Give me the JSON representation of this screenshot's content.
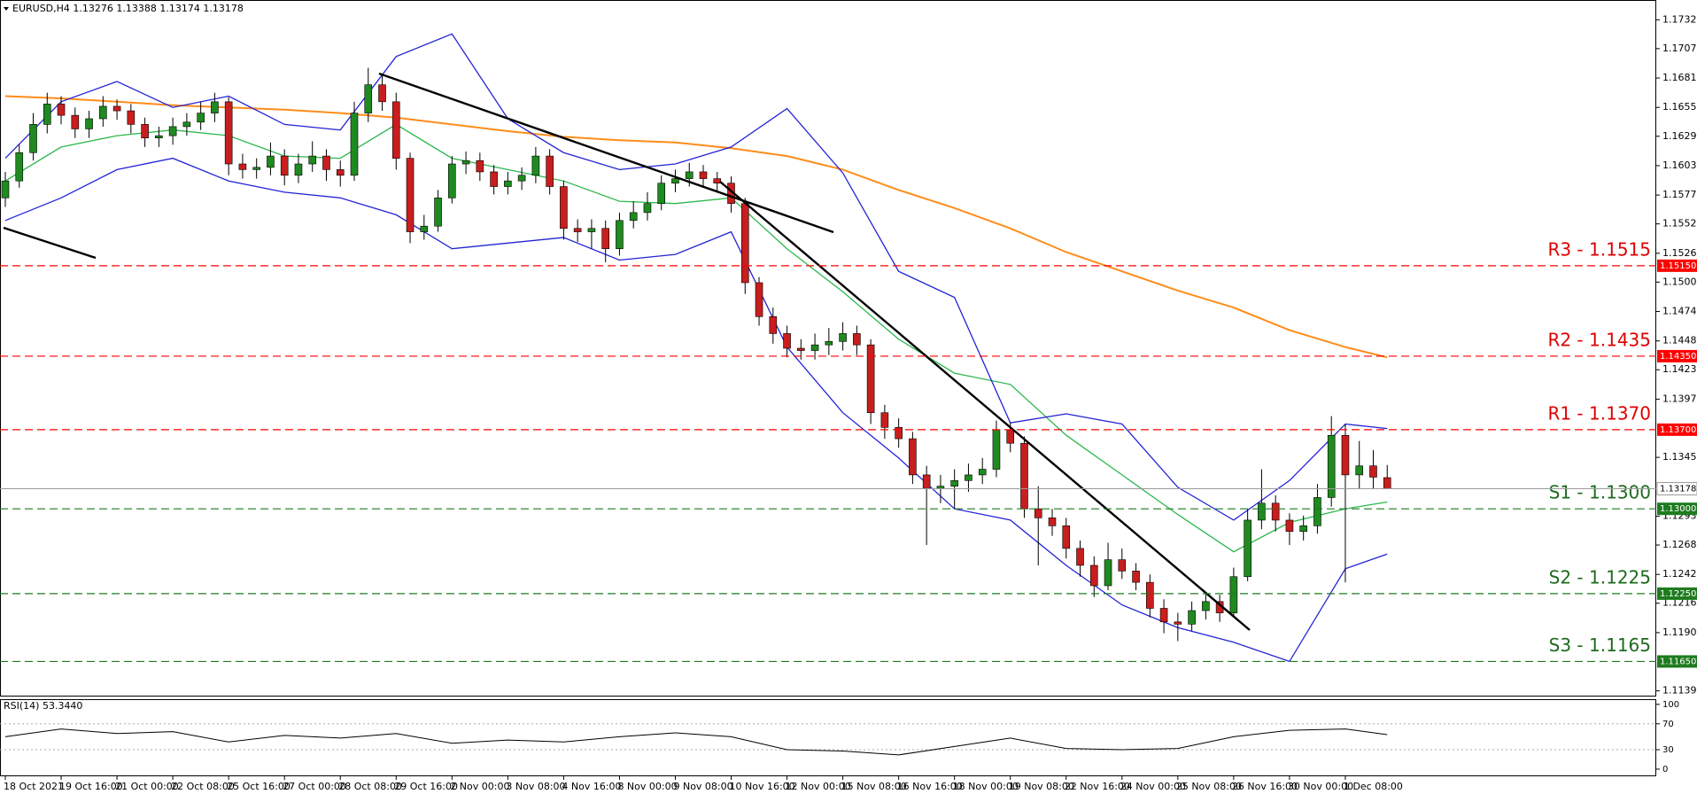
{
  "chart_data": {
    "type": "candlestick",
    "title": "EURUSD,H4  1.13276 1.13388 1.13174 1.13178",
    "up_color": "#1f8a1f",
    "down_color": "#c81e1e",
    "wick_color": "#000000",
    "grid": false,
    "ylim": [
      1.1134,
      1.175
    ],
    "yticks": [
      1.17325,
      {
        "value": 1.1707,
        "label": "1.17070"
      },
      {
        "value": 1.1681,
        "label": "1.16810"
      },
      {
        "value": 1.1655,
        "label": "1.16550"
      },
      1.16295,
      1.16035,
      1.15775,
      {
        "value": 1.1552,
        "label": "1.15520"
      },
      {
        "value": 1.1526,
        "label": "1.15260"
      },
      1.15005,
      1.14745,
      1.14485,
      {
        "value": 1.1423,
        "label": "1.14230"
      },
      {
        "value": 1.1397,
        "label": "1.13970"
      },
      1.13455,
      1.12935,
      {
        "value": 1.1268,
        "label": "1.12680"
      },
      {
        "value": 1.1242,
        "label": "1.12420"
      },
      1.12165,
      1.11905,
      {
        "value": 1.1139,
        "label": "1.11390"
      }
    ],
    "categories": [
      "18 Oct 2021",
      null,
      null,
      null,
      "19 Oct 16:00",
      null,
      null,
      null,
      "21 Oct 00:00",
      null,
      null,
      null,
      "22 Oct 08:00",
      null,
      null,
      null,
      "25 Oct 16:00",
      null,
      null,
      null,
      "27 Oct 00:00",
      null,
      null,
      null,
      "28 Oct 08:00",
      null,
      null,
      null,
      "29 Oct 16:00",
      null,
      null,
      null,
      "2 Nov 00:00",
      null,
      null,
      null,
      "3 Nov 08:00",
      null,
      null,
      null,
      "4 Nov 16:00",
      null,
      null,
      null,
      "8 Nov 00:00",
      null,
      null,
      null,
      "9 Nov 08:00",
      null,
      null,
      null,
      "10 Nov 16:00",
      null,
      null,
      null,
      "12 Nov 00:00",
      null,
      null,
      null,
      "15 Nov 08:00",
      null,
      null,
      null,
      "16 Nov 16:00",
      null,
      null,
      null,
      "18 Nov 00:00",
      null,
      null,
      null,
      "19 Nov 08:00",
      null,
      null,
      null,
      "22 Nov 16:00",
      null,
      null,
      null,
      "24 Nov 00:00",
      null,
      null,
      null,
      "25 Nov 08:00",
      null,
      null,
      null,
      "26 Nov 16:00",
      null,
      null,
      null,
      "30 Nov 00:00",
      null,
      null,
      null,
      "1 Dec 08:00",
      null,
      null,
      null
    ],
    "open": [
      1.1575,
      1.159,
      1.1615,
      1.164,
      1.1658,
      1.1648,
      1.1636,
      1.1645,
      1.1656,
      1.1652,
      1.164,
      1.1628,
      1.163,
      1.1638,
      1.1642,
      1.165,
      1.166,
      1.1605,
      1.16,
      1.1602,
      1.1612,
      1.1595,
      1.1605,
      1.1612,
      1.16,
      1.1595,
      1.165,
      1.1675,
      1.166,
      1.161,
      1.1545,
      1.155,
      1.1575,
      1.1605,
      1.1608,
      1.1598,
      1.1585,
      1.159,
      1.1595,
      1.1612,
      1.1585,
      1.1548,
      1.1545,
      1.1548,
      1.153,
      1.1555,
      1.1562,
      1.157,
      1.1588,
      1.1592,
      1.1598,
      1.1592,
      1.1588,
      1.157,
      1.15,
      1.147,
      1.1455,
      1.1442,
      1.144,
      1.1445,
      1.1448,
      1.1455,
      1.1445,
      1.1385,
      1.1372,
      1.1362,
      1.133,
      1.1318,
      1.132,
      1.1325,
      1.133,
      1.1335,
      1.137,
      1.1358,
      1.13,
      1.1292,
      1.1285,
      1.1265,
      1.125,
      1.1232,
      1.1255,
      1.1245,
      1.1235,
      1.1212,
      1.12,
      1.1198,
      1.121,
      1.1218,
      1.1208,
      1.124,
      1.129,
      1.1305,
      1.129,
      1.128,
      1.1285,
      1.131,
      1.1365,
      1.133,
      1.1338,
      1.13276
    ],
    "high": [
      1.1598,
      1.1622,
      1.165,
      1.1668,
      1.1665,
      1.1655,
      1.1652,
      1.1665,
      1.1662,
      1.1658,
      1.1646,
      1.1638,
      1.1646,
      1.165,
      1.166,
      1.1668,
      1.1664,
      1.1614,
      1.161,
      1.1624,
      1.1618,
      1.1614,
      1.1625,
      1.1618,
      1.1608,
      1.166,
      1.169,
      1.1685,
      1.1668,
      1.1615,
      1.156,
      1.1582,
      1.1612,
      1.1616,
      1.1615,
      1.1604,
      1.1598,
      1.1602,
      1.162,
      1.1618,
      1.159,
      1.1556,
      1.1556,
      1.1555,
      1.1562,
      1.1572,
      1.158,
      1.1595,
      1.16,
      1.1606,
      1.1604,
      1.1598,
      1.1594,
      1.1575,
      1.1505,
      1.1478,
      1.1462,
      1.145,
      1.1455,
      1.146,
      1.1465,
      1.1462,
      1.145,
      1.1392,
      1.138,
      1.1368,
      1.1338,
      1.133,
      1.1335,
      1.134,
      1.1345,
      1.1378,
      1.1376,
      1.1364,
      1.132,
      1.13,
      1.1292,
      1.1272,
      1.1258,
      1.127,
      1.1265,
      1.1252,
      1.1242,
      1.122,
      1.1208,
      1.1218,
      1.1225,
      1.1224,
      1.1248,
      1.13,
      1.1335,
      1.1312,
      1.1296,
      1.1294,
      1.1322,
      1.1382,
      1.1375,
      1.136,
      1.1352,
      1.13388
    ],
    "low": [
      1.1567,
      1.1584,
      1.1608,
      1.1632,
      1.164,
      1.1628,
      1.1628,
      1.1638,
      1.1644,
      1.1632,
      1.162,
      1.162,
      1.1622,
      1.163,
      1.1635,
      1.1642,
      1.1595,
      1.1592,
      1.1592,
      1.1595,
      1.1586,
      1.1588,
      1.1598,
      1.159,
      1.1585,
      1.159,
      1.1642,
      1.1652,
      1.16,
      1.1535,
      1.1538,
      1.1545,
      1.157,
      1.1596,
      1.159,
      1.1578,
      1.1578,
      1.1582,
      1.1588,
      1.1578,
      1.1538,
      1.1536,
      1.153,
      1.1518,
      1.1524,
      1.1548,
      1.1555,
      1.1564,
      1.158,
      1.1585,
      1.1585,
      1.158,
      1.1562,
      1.149,
      1.1462,
      1.1446,
      1.1434,
      1.1432,
      1.1432,
      1.1436,
      1.144,
      1.1436,
      1.1375,
      1.1362,
      1.1354,
      1.1322,
      1.1268,
      1.1305,
      1.13,
      1.1315,
      1.1322,
      1.1328,
      1.135,
      1.1292,
      1.125,
      1.1276,
      1.1256,
      1.124,
      1.1222,
      1.1228,
      1.1238,
      1.1228,
      1.1204,
      1.119,
      1.1183,
      1.1192,
      1.1202,
      1.12,
      1.1205,
      1.1236,
      1.1282,
      1.128,
      1.1268,
      1.1272,
      1.1278,
      1.1302,
      1.1235,
      1.1318,
      1.1318,
      1.13174
    ],
    "close": [
      1.159,
      1.1615,
      1.164,
      1.1658,
      1.1648,
      1.1636,
      1.1645,
      1.1656,
      1.1652,
      1.164,
      1.1628,
      1.163,
      1.1638,
      1.1642,
      1.165,
      1.166,
      1.1605,
      1.16,
      1.1602,
      1.1612,
      1.1595,
      1.1605,
      1.1612,
      1.16,
      1.1595,
      1.165,
      1.1675,
      1.166,
      1.161,
      1.1545,
      1.155,
      1.1575,
      1.1605,
      1.1608,
      1.1598,
      1.1585,
      1.159,
      1.1595,
      1.1612,
      1.1585,
      1.1548,
      1.1545,
      1.1548,
      1.153,
      1.1555,
      1.1562,
      1.157,
      1.1588,
      1.1592,
      1.1598,
      1.1592,
      1.1588,
      1.157,
      1.15,
      1.147,
      1.1455,
      1.1442,
      1.144,
      1.1445,
      1.1448,
      1.1455,
      1.1445,
      1.1385,
      1.1372,
      1.1362,
      1.133,
      1.1318,
      1.132,
      1.1325,
      1.133,
      1.1335,
      1.137,
      1.1358,
      1.13,
      1.1292,
      1.1285,
      1.1265,
      1.125,
      1.1232,
      1.1255,
      1.1245,
      1.1235,
      1.1212,
      1.12,
      1.1198,
      1.121,
      1.1218,
      1.1208,
      1.124,
      1.129,
      1.1305,
      1.129,
      1.128,
      1.1285,
      1.131,
      1.1365,
      1.133,
      1.1338,
      1.1328,
      1.13178
    ],
    "indicators": {
      "x": [
        0,
        4,
        8,
        12,
        16,
        20,
        24,
        28,
        32,
        36,
        40,
        44,
        48,
        52,
        56,
        60,
        64,
        68,
        72,
        76,
        80,
        84,
        88,
        92,
        96,
        99
      ],
      "series": [
        {
          "color": "#ff8c1a",
          "values": [
            1.1665,
            1.1663,
            1.166,
            1.1657,
            1.1655,
            1.1653,
            1.165,
            1.1646,
            1.164,
            1.1634,
            1.1629,
            1.1626,
            1.1624,
            1.1619,
            1.1612,
            1.16,
            1.1582,
            1.1566,
            1.1548,
            1.1527,
            1.151,
            1.1493,
            1.1478,
            1.1458,
            1.1443,
            1.1434
          ]
        },
        {
          "color": "#2db84d",
          "values": [
            1.159,
            1.162,
            1.163,
            1.1635,
            1.163,
            1.1612,
            1.161,
            1.164,
            1.161,
            1.16,
            1.159,
            1.1572,
            1.157,
            1.1575,
            1.153,
            1.1492,
            1.145,
            1.142,
            1.141,
            1.1365,
            1.133,
            1.1295,
            1.1262,
            1.1288,
            1.13,
            1.1306
          ]
        },
        {
          "color": "#2323d6",
          "values": [
            1.161,
            1.166,
            1.1678,
            1.1655,
            1.1665,
            1.164,
            1.1635,
            1.17,
            1.172,
            1.1645,
            1.1615,
            1.16,
            1.1605,
            1.162,
            1.1654,
            1.1597,
            1.151,
            1.1487,
            1.1376,
            1.1384,
            1.1375,
            1.1319,
            1.129,
            1.1325,
            1.1375,
            1.1371
          ]
        },
        {
          "color": "#2323d6",
          "values": [
            1.1555,
            1.1575,
            1.16,
            1.161,
            1.159,
            1.158,
            1.1575,
            1.156,
            1.153,
            1.1535,
            1.154,
            1.152,
            1.1525,
            1.1545,
            1.1443,
            1.1385,
            1.1345,
            1.13,
            1.129,
            1.125,
            1.1215,
            1.1195,
            1.1182,
            1.1165,
            1.1247,
            1.126
          ]
        }
      ]
    },
    "levels": [
      {
        "label": "R3 - 1.1515",
        "value": 1.1515,
        "axis_label": "1.15150",
        "color": "#ff0000",
        "text_color": "#e00000"
      },
      {
        "label": "R2 - 1.1435",
        "value": 1.1435,
        "axis_label": "1.14350",
        "color": "#ff0000",
        "text_color": "#e00000"
      },
      {
        "label": "R1 - 1.1370",
        "value": 1.137,
        "axis_label": "1.13700",
        "color": "#ff0000",
        "text_color": "#e00000"
      },
      {
        "label": "S1 - 1.1300",
        "value": 1.13,
        "axis_label": "1.13000",
        "color": "#1e7b1e",
        "text_color": "#1e6b1e"
      },
      {
        "label": "S2 - 1.1225",
        "value": 1.1225,
        "axis_label": "1.12250",
        "color": "#1e7b1e",
        "text_color": "#1e6b1e"
      },
      {
        "label": "S3 - 1.1165",
        "value": 1.1165,
        "axis_label": "1.11650",
        "color": "#1e7b1e",
        "text_color": "#1e6b1e"
      }
    ],
    "last": {
      "value": 1.13178,
      "label": "1.13178",
      "color": "#9a9a9a"
    },
    "rsi": {
      "title": "RSI(14) 53.3440",
      "color": "#000000",
      "ylim": [
        -11,
        108
      ],
      "yticks": [
        100,
        70,
        30,
        0
      ],
      "levels": [
        70,
        30
      ],
      "x": [
        0,
        4,
        8,
        12,
        16,
        20,
        24,
        28,
        32,
        36,
        40,
        44,
        48,
        52,
        56,
        60,
        64,
        68,
        72,
        76,
        80,
        84,
        88,
        92,
        96,
        99
      ],
      "values": [
        50,
        62,
        55,
        58,
        42,
        52,
        48,
        55,
        40,
        45,
        42,
        50,
        56,
        50,
        30,
        28,
        22,
        35,
        48,
        32,
        30,
        32,
        50,
        60,
        62,
        53.344
      ]
    }
  }
}
